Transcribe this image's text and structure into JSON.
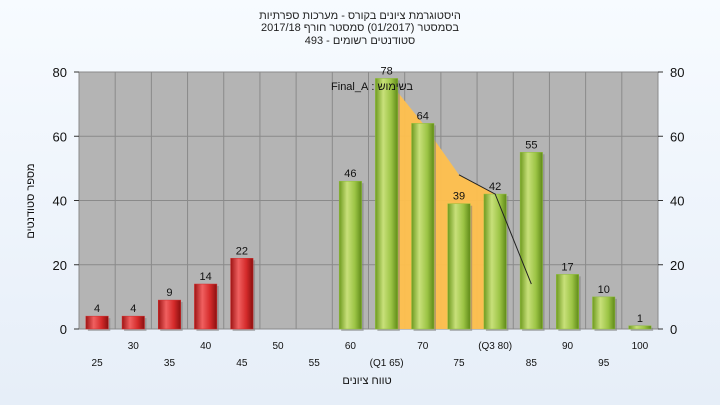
{
  "chart_data": {
    "type": "bar",
    "title_lines": [
      "היסטוגרמת ציונים בקורס - מערכות ספרתיות",
      "בסמסטר  (01/2017)  סמסטר חורף 2017/18",
      "493 - סטודנטים רשומים"
    ],
    "xlabel": "טווח ציונים",
    "ylabel": "מספר סטודנטים",
    "ylim": [
      0,
      80
    ],
    "yticks": [
      0,
      20,
      40,
      60,
      80
    ],
    "annotation": "בשימוש : Final_A",
    "x_tick_labels": [
      "25",
      "30",
      "35",
      "40",
      "45",
      "50",
      "55",
      "60",
      "(Q1 65)",
      "70",
      "75",
      "(Q3 80)",
      "85",
      "90",
      "95",
      "100"
    ],
    "categories": [
      25,
      30,
      35,
      40,
      45,
      50,
      55,
      60,
      65,
      70,
      75,
      80,
      85,
      90,
      95,
      100
    ],
    "values": [
      4,
      4,
      9,
      14,
      22,
      null,
      null,
      46,
      78,
      64,
      39,
      42,
      55,
      17,
      10,
      1
    ],
    "value_labels": [
      "4",
      "4",
      "9",
      "14",
      "22",
      "",
      "",
      "46",
      "78",
      "64",
      "39",
      "42",
      "55",
      "17",
      "10",
      "1"
    ],
    "bar_colors": [
      "#d42a2a",
      "#d42a2a",
      "#d42a2a",
      "#d42a2a",
      "#d42a2a",
      "",
      "",
      "#8fbe3b",
      "#8fbe3b",
      "#8fbe3b",
      "#8fbe3b",
      "#8fbe3b",
      "#8fbe3b",
      "#8fbe3b",
      "#8fbe3b",
      "#8fbe3b"
    ],
    "band": {
      "color": "#ffc04d",
      "x": [
        65,
        70,
        75,
        80
      ],
      "upper": [
        78,
        64,
        48,
        42
      ],
      "lower": [
        0,
        0,
        0,
        0
      ]
    },
    "trend_line": {
      "x": [
        75,
        80,
        85
      ],
      "y": [
        48,
        42,
        14
      ]
    },
    "plot_background": "#b4b4b4",
    "grid": true,
    "right_axis": true
  }
}
